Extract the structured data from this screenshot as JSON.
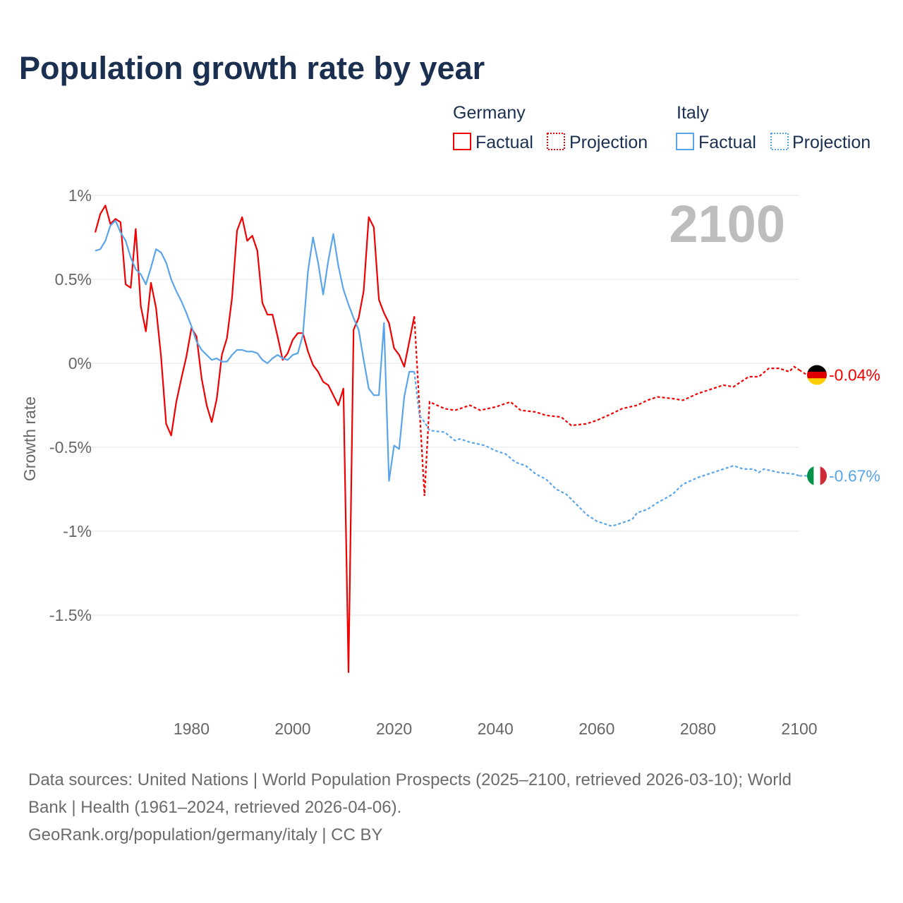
{
  "chart_data": {
    "type": "line",
    "title": "Population growth rate by year",
    "ylabel": "Growth rate",
    "xlabel": "",
    "xlim": [
      1961,
      2100
    ],
    "ylim": [
      -1.9,
      1.0
    ],
    "grid": true,
    "y_ticks": [
      {
        "value": 1,
        "label": "1%"
      },
      {
        "value": 0.5,
        "label": "0.5%"
      },
      {
        "value": 0,
        "label": "0%"
      },
      {
        "value": -0.5,
        "label": "-0.5%"
      },
      {
        "value": -1,
        "label": "-1%"
      },
      {
        "value": -1.5,
        "label": "-1.5%"
      }
    ],
    "x_ticks": [
      {
        "value": 1980,
        "label": "1980"
      },
      {
        "value": 2000,
        "label": "2000"
      },
      {
        "value": 2020,
        "label": "2020"
      },
      {
        "value": 2040,
        "label": "2040"
      },
      {
        "value": 2060,
        "label": "2060"
      },
      {
        "value": 2080,
        "label": "2080"
      },
      {
        "value": 2100,
        "label": "2100"
      }
    ],
    "current_year": "2100",
    "legend": {
      "placement": "top-right",
      "groups": [
        {
          "country": "Germany",
          "factual": "Factual",
          "projection": "Projection"
        },
        {
          "country": "Italy",
          "factual": "Factual",
          "projection": "Projection"
        }
      ]
    },
    "series": [
      {
        "name": "Germany",
        "color": "#f00000",
        "end_label": "-0.04%",
        "factual_start": 1961,
        "factual": [
          0.78,
          0.89,
          0.94,
          0.83,
          0.86,
          0.84,
          0.47,
          0.45,
          0.8,
          0.34,
          0.19,
          0.48,
          0.33,
          0.04,
          -0.36,
          -0.43,
          -0.23,
          -0.09,
          0.04,
          0.21,
          0.16,
          -0.09,
          -0.25,
          -0.35,
          -0.21,
          0.05,
          0.15,
          0.39,
          0.79,
          0.87,
          0.73,
          0.76,
          0.67,
          0.36,
          0.29,
          0.29,
          0.16,
          0.02,
          0.06,
          0.14,
          0.18,
          0.18,
          0.07,
          -0.01,
          -0.05,
          -0.11,
          -0.13,
          -0.19,
          -0.25,
          -0.15,
          -1.84,
          0.2,
          0.27,
          0.43,
          0.87,
          0.81,
          0.38,
          0.3,
          0.24,
          0.09,
          0.05,
          -0.02,
          0.13,
          0.28
        ],
        "projection": [
          [
            2024,
            0.28
          ],
          [
            2025,
            -0.26
          ],
          [
            2026,
            -0.79
          ],
          [
            2027,
            -0.23
          ],
          [
            2030,
            -0.27
          ],
          [
            2032,
            -0.28
          ],
          [
            2035,
            -0.25
          ],
          [
            2037,
            -0.28
          ],
          [
            2040,
            -0.26
          ],
          [
            2043,
            -0.23
          ],
          [
            2045,
            -0.28
          ],
          [
            2048,
            -0.29
          ],
          [
            2050,
            -0.31
          ],
          [
            2053,
            -0.32
          ],
          [
            2055,
            -0.37
          ],
          [
            2058,
            -0.36
          ],
          [
            2060,
            -0.34
          ],
          [
            2063,
            -0.3
          ],
          [
            2065,
            -0.27
          ],
          [
            2068,
            -0.25
          ],
          [
            2070,
            -0.22
          ],
          [
            2072,
            -0.2
          ],
          [
            2075,
            -0.21
          ],
          [
            2077,
            -0.22
          ],
          [
            2080,
            -0.18
          ],
          [
            2083,
            -0.15
          ],
          [
            2085,
            -0.13
          ],
          [
            2087,
            -0.14
          ],
          [
            2090,
            -0.08
          ],
          [
            2092,
            -0.08
          ],
          [
            2094,
            -0.03
          ],
          [
            2096,
            -0.03
          ],
          [
            2098,
            -0.05
          ],
          [
            2099,
            -0.02
          ],
          [
            2100,
            -0.04
          ]
        ]
      },
      {
        "name": "Italy",
        "color": "#5aa5ea",
        "end_label": "-0.67%",
        "factual_start": 1961,
        "factual": [
          0.67,
          0.68,
          0.73,
          0.82,
          0.85,
          0.78,
          0.73,
          0.63,
          0.56,
          0.53,
          0.47,
          0.57,
          0.68,
          0.66,
          0.6,
          0.5,
          0.43,
          0.37,
          0.3,
          0.22,
          0.13,
          0.08,
          0.05,
          0.02,
          0.03,
          0.01,
          0.01,
          0.05,
          0.08,
          0.08,
          0.07,
          0.07,
          0.06,
          0.02,
          0.0,
          0.03,
          0.05,
          0.03,
          0.02,
          0.05,
          0.06,
          0.17,
          0.55,
          0.75,
          0.6,
          0.41,
          0.61,
          0.77,
          0.58,
          0.44,
          0.35,
          0.27,
          0.2,
          0.02,
          -0.15,
          -0.19,
          -0.19,
          0.24,
          -0.7,
          -0.49,
          -0.51,
          -0.2,
          -0.05,
          -0.05
        ],
        "projection": [
          [
            2024,
            -0.05
          ],
          [
            2025,
            -0.31
          ],
          [
            2026,
            -0.35
          ],
          [
            2027,
            -0.4
          ],
          [
            2030,
            -0.41
          ],
          [
            2032,
            -0.46
          ],
          [
            2033,
            -0.45
          ],
          [
            2035,
            -0.47
          ],
          [
            2038,
            -0.49
          ],
          [
            2040,
            -0.52
          ],
          [
            2042,
            -0.54
          ],
          [
            2044,
            -0.59
          ],
          [
            2046,
            -0.61
          ],
          [
            2048,
            -0.66
          ],
          [
            2050,
            -0.69
          ],
          [
            2052,
            -0.75
          ],
          [
            2054,
            -0.78
          ],
          [
            2056,
            -0.84
          ],
          [
            2058,
            -0.9
          ],
          [
            2060,
            -0.94
          ],
          [
            2063,
            -0.97
          ],
          [
            2065,
            -0.95
          ],
          [
            2067,
            -0.93
          ],
          [
            2068,
            -0.89
          ],
          [
            2070,
            -0.87
          ],
          [
            2072,
            -0.83
          ],
          [
            2075,
            -0.78
          ],
          [
            2077,
            -0.72
          ],
          [
            2080,
            -0.68
          ],
          [
            2083,
            -0.65
          ],
          [
            2085,
            -0.63
          ],
          [
            2087,
            -0.61
          ],
          [
            2089,
            -0.63
          ],
          [
            2091,
            -0.63
          ],
          [
            2092,
            -0.65
          ],
          [
            2093,
            -0.63
          ],
          [
            2096,
            -0.65
          ],
          [
            2099,
            -0.66
          ],
          [
            2100,
            -0.67
          ]
        ]
      }
    ]
  },
  "footer": {
    "line1": "Data sources: United Nations | World Population Prospects (2025–2100, retrieved 2026-03-10); World",
    "line2": "Bank | Health (1961–2024, retrieved 2026-04-06).",
    "line3": "GeoRank.org/population/germany/italy | CC BY"
  }
}
